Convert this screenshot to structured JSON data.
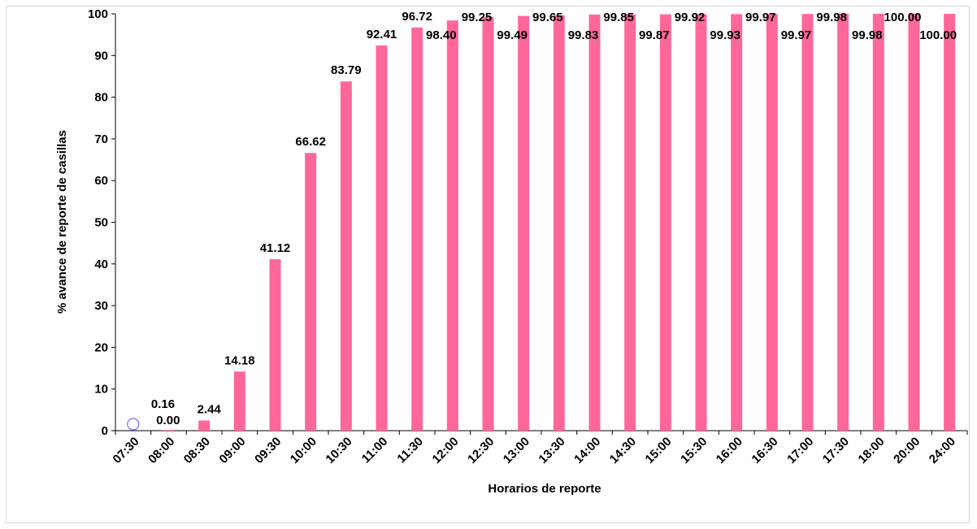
{
  "chart_data": {
    "type": "bar",
    "xlabel": "Horarios de reporte",
    "ylabel": "% avance de reporte de casillas",
    "ylim": [
      0,
      100
    ],
    "yticks": [
      "0",
      "10",
      "20",
      "30",
      "40",
      "50",
      "60",
      "70",
      "80",
      "90",
      "100"
    ],
    "categories": [
      "07:30",
      "08:00",
      "08:30",
      "09:00",
      "09:30",
      "10:00",
      "10:30",
      "11:00",
      "11:30",
      "12:00",
      "12:30",
      "13:00",
      "13:30",
      "14:00",
      "14:30",
      "15:00",
      "15:30",
      "16:00",
      "16:30",
      "17:00",
      "17:30",
      "18:00",
      "20:00",
      "24:00"
    ],
    "series": [
      {
        "values": [
          0.0,
          0.16,
          2.44,
          14.18,
          41.12,
          66.62,
          83.79,
          92.41,
          96.72,
          98.4,
          99.25,
          99.49,
          99.65,
          99.83,
          99.85,
          99.87,
          99.92,
          99.93,
          99.97,
          99.97,
          99.98,
          99.98,
          100.0,
          100.0
        ],
        "labels": [
          "0.00",
          "0.16",
          "2.44",
          "14.18",
          "41.12",
          "66.62",
          "83.79",
          "92.41",
          "96.72",
          "98.40",
          "99.25",
          "99.49",
          "99.65",
          "99.83",
          "99.85",
          "99.87",
          "99.92",
          "99.93",
          "99.97",
          "99.97",
          "99.98",
          "99.98",
          "100.00",
          "100.00"
        ]
      }
    ],
    "bar_color": "#ff6699",
    "marker_color": "#7b68ee",
    "grid": false
  }
}
